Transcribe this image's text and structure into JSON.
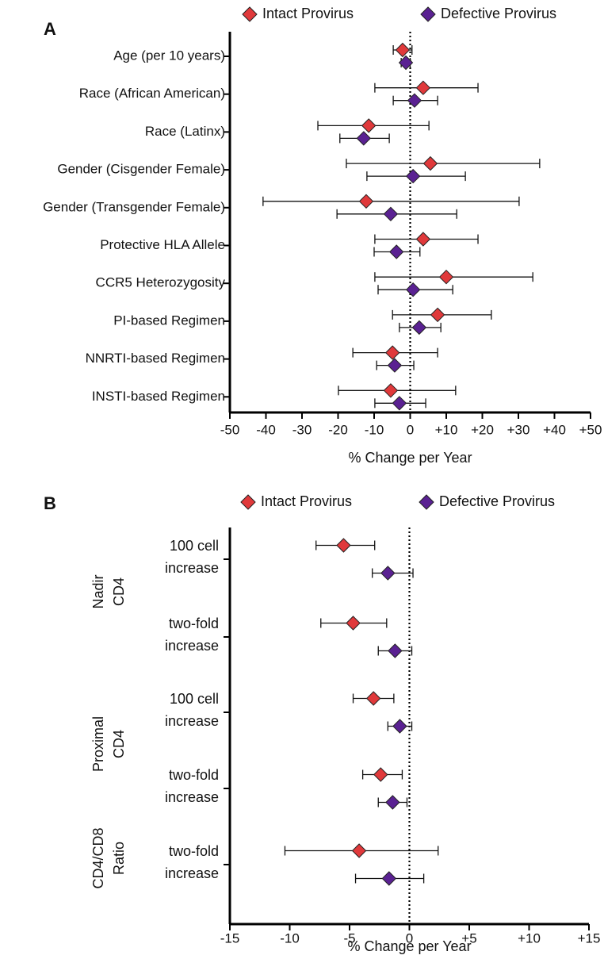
{
  "chart_data": [
    {
      "type": "forest",
      "panel": "A",
      "xlabel": "% Change per Year",
      "categories": [
        "Age (per 10 years)",
        "Race (African American)",
        "Race (Latinx)",
        "Gender (Cisgender Female)",
        "Gender (Transgender Female)",
        "Protective HLA Allele",
        "CCR5 Heterozygosity",
        "PI-based Regimen",
        "NNRTI-based Regimen",
        "INSTI-based Regimen"
      ],
      "series": [
        {
          "name": "Intact Provirus",
          "color": "#e0393b",
          "values": [
            -2.1,
            3.6,
            -11.5,
            5.6,
            -12.2,
            3.6,
            10,
            7.6,
            -4.9,
            -5.4
          ],
          "lower": [
            -4.7,
            -9.8,
            -25.6,
            -17.7,
            -40.8,
            -9.8,
            -9.8,
            -4.9,
            -15.9,
            -19.9
          ],
          "upper": [
            0.5,
            18.8,
            5.2,
            35.9,
            30.2,
            18.8,
            34,
            22.5,
            7.6,
            12.6
          ]
        },
        {
          "name": "Defective Provirus",
          "color": "#5a2192",
          "values": [
            -1.2,
            1.2,
            -12.9,
            0.8,
            -5.4,
            -3.8,
            0.8,
            2.5,
            -4.3,
            -3
          ],
          "lower": [
            -2.5,
            -4.7,
            -19.5,
            -12,
            -20.3,
            -10,
            -8.9,
            -3,
            -9.3,
            -9.8
          ],
          "upper": [
            0,
            7.6,
            -5.8,
            15.3,
            12.9,
            2.7,
            11.8,
            8.5,
            1,
            4.3
          ]
        }
      ],
      "xlim": [
        -50,
        50
      ],
      "xticks": [
        -50,
        -40,
        -30,
        -20,
        -10,
        0,
        {
          "value": 10,
          "label": "+10"
        },
        {
          "value": 20,
          "label": "+20"
        },
        {
          "value": 30,
          "label": "+30"
        },
        {
          "value": 40,
          "label": "+40"
        },
        {
          "value": 50,
          "label": "+50"
        }
      ]
    },
    {
      "type": "forest",
      "panel": "B",
      "xlabel": "% Change per Year",
      "groups": [
        {
          "label": [
            "Nadir",
            "CD4"
          ],
          "rows": [
            0,
            1
          ]
        },
        {
          "label": [
            "Proximal",
            "CD4"
          ],
          "rows": [
            2,
            3
          ]
        },
        {
          "label": [
            "CD4/CD8",
            "Ratio"
          ],
          "rows": [
            4
          ]
        }
      ],
      "categories": [
        [
          "100 cell",
          "increase"
        ],
        [
          "two-fold",
          "increase"
        ],
        [
          "100 cell",
          "increase"
        ],
        [
          "two-fold",
          "increase"
        ],
        [
          "two-fold",
          "increase"
        ]
      ],
      "series": [
        {
          "name": "Intact Provirus",
          "color": "#e0393b",
          "values": [
            -5.5,
            -4.7,
            -3,
            -2.4,
            -4.2
          ],
          "lower": [
            -7.8,
            -7.4,
            -4.7,
            -3.9,
            -10.4
          ],
          "upper": [
            -2.9,
            -1.9,
            -1.3,
            -0.6,
            2.4
          ]
        },
        {
          "name": "Defective Provirus",
          "color": "#5a2192",
          "values": [
            -1.8,
            -1.2,
            -0.8,
            -1.4,
            -1.7
          ],
          "lower": [
            -3.1,
            -2.6,
            -1.8,
            -2.6,
            -4.5
          ],
          "upper": [
            0.3,
            0.2,
            0.2,
            -0.2,
            1.2
          ]
        }
      ],
      "xlim": [
        -15,
        15
      ],
      "xticks": [
        -15,
        -10,
        -5,
        0,
        {
          "value": 5,
          "label": "+5"
        },
        {
          "value": 10,
          "label": "+10"
        },
        {
          "value": 15,
          "label": "+15"
        }
      ]
    }
  ]
}
